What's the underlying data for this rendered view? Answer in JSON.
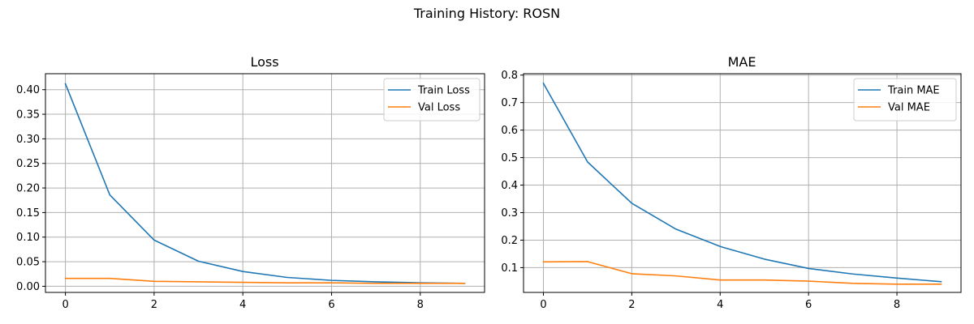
{
  "figure": {
    "title": "Training History: ROSN"
  },
  "colors": {
    "train": "#1f77b4",
    "val": "#ff7f0e"
  },
  "chart_data": [
    {
      "type": "line",
      "title": "Loss",
      "xlabel": "",
      "ylabel": "",
      "xlim": [
        -0.45,
        9.45
      ],
      "ylim": [
        -0.0125,
        0.4325
      ],
      "xticks": [
        0,
        2,
        4,
        6,
        8
      ],
      "yticks": [
        0.0,
        0.05,
        0.1,
        0.15,
        0.2,
        0.25,
        0.3,
        0.35,
        0.4
      ],
      "ytick_decimals": 2,
      "grid": true,
      "legend": "top-right",
      "x": [
        0,
        1,
        2,
        3,
        4,
        5,
        6,
        7,
        8,
        9
      ],
      "series": [
        {
          "name": "Train Loss",
          "values": [
            0.412,
            0.186,
            0.094,
            0.051,
            0.03,
            0.018,
            0.012,
            0.009,
            0.007,
            0.006
          ]
        },
        {
          "name": "Val Loss",
          "values": [
            0.016,
            0.016,
            0.01,
            0.009,
            0.008,
            0.007,
            0.007,
            0.006,
            0.006,
            0.006
          ]
        }
      ]
    },
    {
      "type": "line",
      "title": "MAE",
      "xlabel": "",
      "ylabel": "",
      "xlim": [
        -0.45,
        9.45
      ],
      "ylim": [
        0.01,
        0.805
      ],
      "xticks": [
        0,
        2,
        4,
        6,
        8
      ],
      "yticks": [
        0.1,
        0.2,
        0.3,
        0.4,
        0.5,
        0.6,
        0.7,
        0.8
      ],
      "ytick_decimals": 1,
      "grid": true,
      "legend": "top-right",
      "x": [
        0,
        1,
        2,
        3,
        4,
        5,
        6,
        7,
        8,
        9
      ],
      "series": [
        {
          "name": "Train MAE",
          "values": [
            0.77,
            0.484,
            0.334,
            0.24,
            0.177,
            0.131,
            0.097,
            0.077,
            0.062,
            0.049
          ]
        },
        {
          "name": "Val MAE",
          "values": [
            0.121,
            0.122,
            0.078,
            0.07,
            0.055,
            0.055,
            0.051,
            0.043,
            0.04,
            0.04
          ]
        }
      ]
    }
  ]
}
